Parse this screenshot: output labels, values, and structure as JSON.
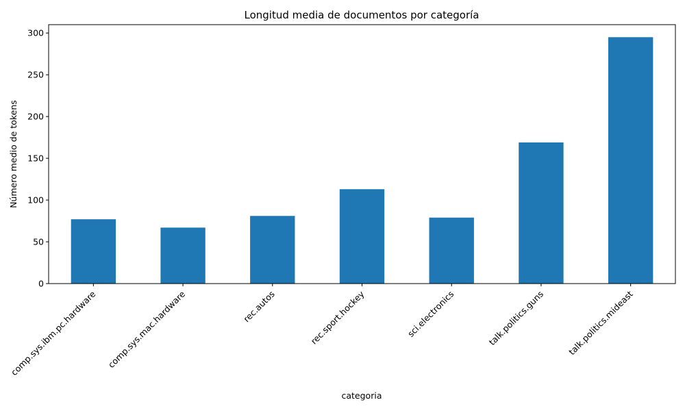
{
  "chart_data": {
    "type": "bar",
    "title": "Longitud media de documentos por categoría",
    "xlabel": "categoria",
    "ylabel": "Número medio de tokens",
    "categories": [
      "comp.sys.ibm.pc.hardware",
      "comp.sys.mac.hardware",
      "rec.autos",
      "rec.sport.hockey",
      "sci.electronics",
      "talk.politics.guns",
      "talk.politics.mideast"
    ],
    "values": [
      77,
      67,
      81,
      113,
      79,
      169,
      295
    ],
    "ylim": [
      0,
      310
    ],
    "yticks": [
      0,
      50,
      100,
      150,
      200,
      250,
      300
    ],
    "bar_color": "#1f77b4",
    "grid": false,
    "legend": "none",
    "xtick_rotation": 45
  }
}
